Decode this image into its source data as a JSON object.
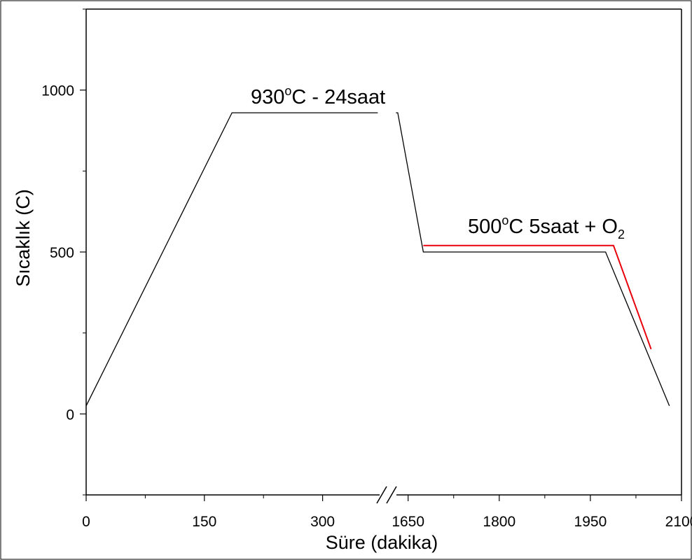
{
  "chart_data": {
    "type": "line",
    "xlabel": "Süre (dakika)",
    "ylabel": "Sıcaklık (C)",
    "axis_break": [
      375,
      1625
    ],
    "x_ticks": [
      {
        "value": 0,
        "label": "0"
      },
      {
        "value": 150,
        "label": "150"
      },
      {
        "value": 300,
        "label": "300"
      },
      {
        "value": 1650,
        "label": "1650"
      },
      {
        "value": 1800,
        "label": "1800"
      },
      {
        "value": 1950,
        "label": "1950"
      },
      {
        "value": 2100,
        "label": "2100"
      }
    ],
    "y_ticks": [
      {
        "value": 0,
        "label": "0"
      },
      {
        "value": 500,
        "label": "500"
      },
      {
        "value": 1000,
        "label": "1000"
      }
    ],
    "xlim": [
      0,
      2100
    ],
    "ylim": [
      -250,
      1250
    ],
    "grid": false,
    "series": [
      {
        "color": "#000000",
        "segments": [
          [
            [
              0,
              25
            ],
            [
              185,
              930
            ],
            [
              370,
              930
            ]
          ],
          [
            [
              1630,
              930
            ],
            [
              1633,
              930
            ],
            [
              1675,
              500
            ],
            [
              1975,
              500
            ],
            [
              2080,
              25
            ]
          ]
        ]
      },
      {
        "color": "#e8000b",
        "segments": [
          [
            [
              1675,
              520
            ],
            [
              1988,
              520
            ],
            [
              2050,
              200
            ]
          ]
        ]
      }
    ],
    "annotations": [
      {
        "id": "hold1",
        "base": "930",
        "sup": "o",
        "rest": "C - 24saat",
        "sub": "",
        "sub_rest": "",
        "color": "#000000"
      },
      {
        "id": "hold2",
        "base": "500",
        "sup": "o",
        "rest": "C 5saat + O",
        "sub": "2",
        "sub_rest": "",
        "color": "#000000"
      }
    ]
  }
}
